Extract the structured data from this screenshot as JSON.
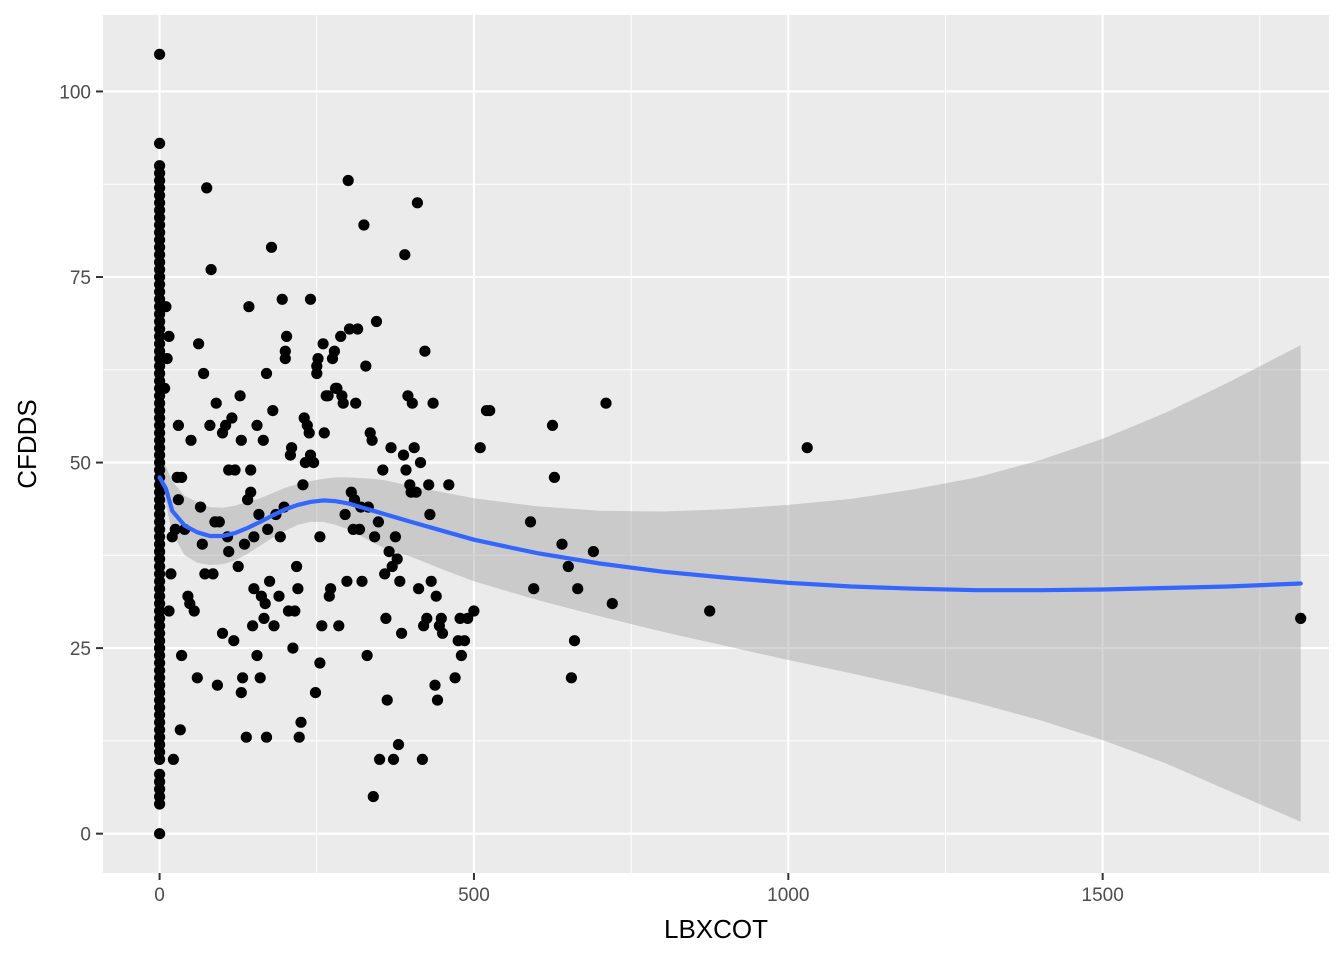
{
  "chart_data": {
    "type": "scatter",
    "title": "",
    "xlabel": "LBXCOT",
    "ylabel": "CFDDS",
    "xlim": [
      -90,
      1860
    ],
    "ylim": [
      -5.3,
      110.3
    ],
    "x_ticks": [
      0,
      500,
      1000,
      1500
    ],
    "x_tick_labels": [
      "0",
      "500",
      "1000",
      "1500"
    ],
    "y_ticks": [
      0,
      25,
      50,
      75,
      100
    ],
    "y_tick_labels": [
      "0",
      "25",
      "50",
      "75",
      "100"
    ],
    "grid": true,
    "legend": "none",
    "colors": {
      "panel_background": "#EBEBEB",
      "grid_major": "#FFFFFF",
      "points": "#000000",
      "smooth_line": "#3366FF",
      "confidence_band": "#999999"
    },
    "points": [
      [
        0,
        105
      ],
      [
        0,
        93
      ],
      [
        0,
        90
      ],
      [
        0,
        89
      ],
      [
        0,
        88
      ],
      [
        0,
        87
      ],
      [
        0,
        86
      ],
      [
        0,
        85
      ],
      [
        0,
        84
      ],
      [
        0,
        83
      ],
      [
        0,
        82
      ],
      [
        0,
        81
      ],
      [
        0,
        80
      ],
      [
        0,
        79
      ],
      [
        0,
        78
      ],
      [
        0,
        77
      ],
      [
        0,
        76
      ],
      [
        0,
        75
      ],
      [
        0,
        74
      ],
      [
        0,
        73
      ],
      [
        0,
        72
      ],
      [
        0,
        71
      ],
      [
        0,
        70
      ],
      [
        0,
        69
      ],
      [
        0,
        68
      ],
      [
        0,
        67
      ],
      [
        0,
        66
      ],
      [
        0,
        65
      ],
      [
        0,
        64
      ],
      [
        0,
        63
      ],
      [
        0,
        62
      ],
      [
        0,
        61
      ],
      [
        0,
        60
      ],
      [
        0,
        59
      ],
      [
        0,
        58
      ],
      [
        0,
        57
      ],
      [
        0,
        56
      ],
      [
        0,
        55
      ],
      [
        0,
        54
      ],
      [
        0,
        53
      ],
      [
        0,
        52
      ],
      [
        0,
        51
      ],
      [
        0,
        50
      ],
      [
        0,
        49
      ],
      [
        0,
        48
      ],
      [
        0,
        47
      ],
      [
        0,
        46
      ],
      [
        0,
        45
      ],
      [
        0,
        44
      ],
      [
        0,
        43
      ],
      [
        0,
        42
      ],
      [
        0,
        41
      ],
      [
        0,
        40
      ],
      [
        0,
        39
      ],
      [
        0,
        38
      ],
      [
        0,
        37
      ],
      [
        0,
        36
      ],
      [
        0,
        35
      ],
      [
        0,
        34
      ],
      [
        0,
        33
      ],
      [
        0,
        32
      ],
      [
        0,
        31
      ],
      [
        0,
        30
      ],
      [
        0,
        29
      ],
      [
        0,
        28
      ],
      [
        0,
        27
      ],
      [
        0,
        26
      ],
      [
        0,
        25
      ],
      [
        0,
        24
      ],
      [
        0,
        23
      ],
      [
        0,
        22
      ],
      [
        0,
        21
      ],
      [
        0,
        20
      ],
      [
        0,
        19
      ],
      [
        0,
        18
      ],
      [
        0,
        17
      ],
      [
        0,
        16
      ],
      [
        0,
        15
      ],
      [
        0,
        14
      ],
      [
        0,
        13
      ],
      [
        0,
        12
      ],
      [
        0,
        11
      ],
      [
        0,
        10
      ],
      [
        0,
        8
      ],
      [
        0,
        7
      ],
      [
        0,
        6
      ],
      [
        0,
        5
      ],
      [
        0,
        4
      ],
      [
        0,
        0
      ],
      [
        10,
        71
      ],
      [
        15,
        67
      ],
      [
        12,
        64
      ],
      [
        8,
        60
      ],
      [
        18,
        35
      ],
      [
        15,
        30
      ],
      [
        22,
        10
      ],
      [
        20,
        40
      ],
      [
        25,
        41
      ],
      [
        30,
        55
      ],
      [
        28,
        48
      ],
      [
        35,
        48
      ],
      [
        30,
        45
      ],
      [
        40,
        41
      ],
      [
        35,
        24
      ],
      [
        33,
        14
      ],
      [
        50,
        53
      ],
      [
        45,
        32
      ],
      [
        48,
        31
      ],
      [
        55,
        30
      ],
      [
        60,
        21
      ],
      [
        62,
        66
      ],
      [
        70,
        62
      ],
      [
        65,
        44
      ],
      [
        68,
        39
      ],
      [
        72,
        35
      ],
      [
        75,
        87
      ],
      [
        80,
        55
      ],
      [
        82,
        76
      ],
      [
        85,
        35
      ],
      [
        88,
        42
      ],
      [
        90,
        58
      ],
      [
        92,
        20
      ],
      [
        95,
        42
      ],
      [
        100,
        54
      ],
      [
        100,
        27
      ],
      [
        105,
        55
      ],
      [
        108,
        40
      ],
      [
        110,
        49
      ],
      [
        110,
        38
      ],
      [
        115,
        56
      ],
      [
        118,
        26
      ],
      [
        120,
        49
      ],
      [
        125,
        36
      ],
      [
        128,
        59
      ],
      [
        130,
        53
      ],
      [
        130,
        19
      ],
      [
        132,
        21
      ],
      [
        135,
        39
      ],
      [
        138,
        13
      ],
      [
        140,
        45
      ],
      [
        142,
        71
      ],
      [
        145,
        49
      ],
      [
        145,
        46
      ],
      [
        148,
        28
      ],
      [
        150,
        40
      ],
      [
        150,
        33
      ],
      [
        155,
        24
      ],
      [
        155,
        55
      ],
      [
        158,
        43
      ],
      [
        160,
        21
      ],
      [
        162,
        32
      ],
      [
        165,
        53
      ],
      [
        166,
        29
      ],
      [
        168,
        31
      ],
      [
        170,
        13
      ],
      [
        170,
        62
      ],
      [
        172,
        41
      ],
      [
        175,
        34
      ],
      [
        178,
        79
      ],
      [
        180,
        57
      ],
      [
        182,
        28
      ],
      [
        185,
        43
      ],
      [
        190,
        32
      ],
      [
        192,
        40
      ],
      [
        195,
        72
      ],
      [
        198,
        44
      ],
      [
        200,
        65
      ],
      [
        200,
        64
      ],
      [
        202,
        67
      ],
      [
        205,
        30
      ],
      [
        208,
        51
      ],
      [
        210,
        52
      ],
      [
        212,
        25
      ],
      [
        215,
        30
      ],
      [
        218,
        36
      ],
      [
        220,
        33
      ],
      [
        222,
        13
      ],
      [
        225,
        15
      ],
      [
        228,
        47
      ],
      [
        230,
        56
      ],
      [
        232,
        50
      ],
      [
        235,
        55
      ],
      [
        238,
        54
      ],
      [
        240,
        72
      ],
      [
        240,
        51
      ],
      [
        245,
        50
      ],
      [
        248,
        19
      ],
      [
        250,
        62
      ],
      [
        250,
        63
      ],
      [
        252,
        64
      ],
      [
        255,
        40
      ],
      [
        255,
        23
      ],
      [
        258,
        28
      ],
      [
        260,
        66
      ],
      [
        262,
        54
      ],
      [
        265,
        59
      ],
      [
        268,
        59
      ],
      [
        270,
        32
      ],
      [
        272,
        33
      ],
      [
        275,
        64
      ],
      [
        278,
        65
      ],
      [
        280,
        60
      ],
      [
        282,
        60
      ],
      [
        285,
        28
      ],
      [
        288,
        67
      ],
      [
        290,
        59
      ],
      [
        292,
        58
      ],
      [
        295,
        43
      ],
      [
        298,
        34
      ],
      [
        300,
        88
      ],
      [
        302,
        68
      ],
      [
        305,
        46
      ],
      [
        308,
        41
      ],
      [
        310,
        45
      ],
      [
        312,
        58
      ],
      [
        315,
        68
      ],
      [
        318,
        41
      ],
      [
        320,
        44
      ],
      [
        322,
        34
      ],
      [
        325,
        82
      ],
      [
        328,
        63
      ],
      [
        330,
        24
      ],
      [
        332,
        44
      ],
      [
        335,
        54
      ],
      [
        338,
        53
      ],
      [
        340,
        5
      ],
      [
        342,
        40
      ],
      [
        345,
        69
      ],
      [
        348,
        42
      ],
      [
        350,
        10
      ],
      [
        355,
        49
      ],
      [
        358,
        35
      ],
      [
        360,
        29
      ],
      [
        362,
        18
      ],
      [
        365,
        38
      ],
      [
        368,
        52
      ],
      [
        370,
        36
      ],
      [
        372,
        10
      ],
      [
        375,
        40
      ],
      [
        378,
        37
      ],
      [
        380,
        12
      ],
      [
        382,
        34
      ],
      [
        385,
        27
      ],
      [
        388,
        51
      ],
      [
        390,
        78
      ],
      [
        392,
        49
      ],
      [
        395,
        59
      ],
      [
        398,
        47
      ],
      [
        400,
        46
      ],
      [
        402,
        58
      ],
      [
        405,
        52
      ],
      [
        408,
        46
      ],
      [
        410,
        85
      ],
      [
        412,
        33
      ],
      [
        415,
        50
      ],
      [
        418,
        10
      ],
      [
        420,
        28
      ],
      [
        422,
        65
      ],
      [
        425,
        29
      ],
      [
        428,
        47
      ],
      [
        430,
        43
      ],
      [
        432,
        34
      ],
      [
        435,
        58
      ],
      [
        438,
        20
      ],
      [
        440,
        32
      ],
      [
        442,
        18
      ],
      [
        445,
        28
      ],
      [
        448,
        29
      ],
      [
        450,
        27
      ],
      [
        460,
        47
      ],
      [
        470,
        21
      ],
      [
        475,
        26
      ],
      [
        478,
        29
      ],
      [
        480,
        24
      ],
      [
        485,
        26
      ],
      [
        490,
        29
      ],
      [
        500,
        30
      ],
      [
        510,
        52
      ],
      [
        520,
        57
      ],
      [
        525,
        57
      ],
      [
        590,
        42
      ],
      [
        595,
        33
      ],
      [
        625,
        55
      ],
      [
        628,
        48
      ],
      [
        640,
        39
      ],
      [
        650,
        36
      ],
      [
        655,
        21
      ],
      [
        660,
        26
      ],
      [
        665,
        33
      ],
      [
        690,
        38
      ],
      [
        710,
        58
      ],
      [
        720,
        31
      ],
      [
        875,
        30
      ],
      [
        1030,
        52
      ],
      [
        1815,
        29
      ]
    ],
    "smooth_line": {
      "x": [
        0,
        10,
        20,
        40,
        60,
        80,
        100,
        120,
        140,
        160,
        180,
        200,
        220,
        240,
        260,
        280,
        300,
        320,
        340,
        360,
        380,
        400,
        450,
        500,
        600,
        700,
        800,
        900,
        1000,
        1100,
        1200,
        1300,
        1400,
        1500,
        1600,
        1700,
        1815
      ],
      "y": [
        48,
        46.5,
        43.5,
        41.5,
        40.6,
        40.1,
        40.1,
        40.5,
        41.2,
        42,
        42.9,
        43.7,
        44.3,
        44.7,
        44.9,
        44.8,
        44.5,
        44,
        43.5,
        43,
        42.5,
        42,
        40.8,
        39.6,
        37.8,
        36.4,
        35.3,
        34.5,
        33.8,
        33.3,
        33,
        32.8,
        32.8,
        32.9,
        33.1,
        33.3,
        33.7
      ]
    },
    "confidence_band": {
      "x": [
        0,
        10,
        20,
        40,
        60,
        80,
        100,
        120,
        140,
        160,
        180,
        200,
        220,
        240,
        260,
        280,
        300,
        320,
        340,
        360,
        380,
        400,
        450,
        500,
        600,
        700,
        800,
        900,
        1000,
        1100,
        1200,
        1300,
        1400,
        1500,
        1600,
        1700,
        1815
      ],
      "ymin": [
        45.5,
        44.5,
        40.5,
        37.5,
        36.5,
        36.2,
        36.3,
        36.8,
        37.7,
        38.8,
        39.9,
        40.8,
        41.6,
        42,
        42,
        41.6,
        41,
        40.1,
        39.2,
        38.4,
        37.8,
        37.3,
        35.6,
        34,
        31.5,
        29.3,
        27.2,
        25.3,
        23.4,
        21.6,
        19.7,
        17.6,
        15.3,
        12.6,
        9.5,
        5.8,
        1.6
      ],
      "ymax": [
        50.5,
        49.5,
        47.5,
        45.5,
        44.7,
        44,
        43.9,
        44.2,
        44.7,
        45.2,
        45.9,
        46.6,
        47.1,
        47.5,
        47.8,
        48,
        48,
        47.9,
        47.8,
        47.6,
        47.2,
        46.8,
        46,
        45.2,
        44.1,
        43.5,
        43.4,
        43.7,
        44.3,
        45.1,
        46.4,
        48,
        50.3,
        53.2,
        56.7,
        60.8,
        65.8
      ]
    }
  }
}
